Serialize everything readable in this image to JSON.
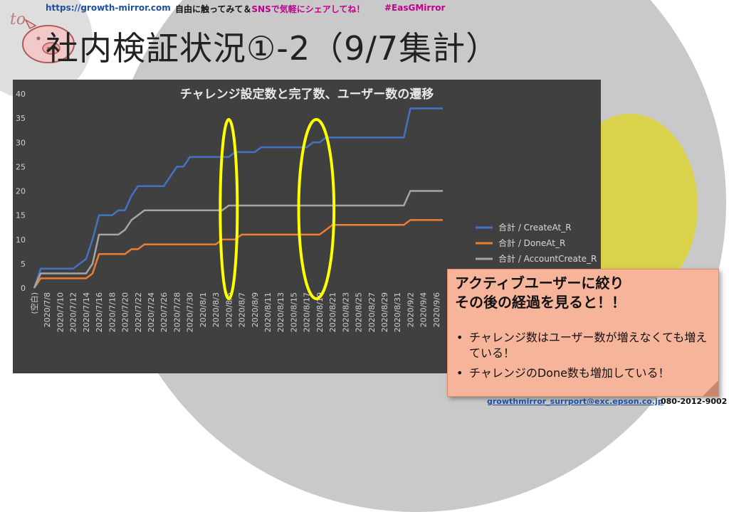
{
  "header": {
    "url": "https://growth-mirror.com",
    "message_pre": "自由に触ってみて＆",
    "message_hl": "SNSで気軽にシェアしてね！",
    "hashtag": "#EasGMirror"
  },
  "title": "社内検証状況①-2（9/7集計）",
  "callout": {
    "heading_line1": "アクティブユーザーに絞り",
    "heading_line2": "その後の経過を見ると！！",
    "bullets": [
      "チャレンジ数はユーザー数が増えなくても増えている！",
      "チャレンジのDone数も増加している！"
    ]
  },
  "footer": {
    "email": "growthmirror_surrport@exc.epson.co.jp",
    "tel": "080-2012-9002"
  },
  "colors": {
    "chart_bg": "#404040",
    "create": "#4472c4",
    "done": "#ed7d31",
    "account": "#a5a5a5",
    "highlight_ellipse": "#ffff00"
  },
  "chart_data": {
    "type": "line",
    "title": "チャレンジ設定数と完了数、ユーザー数の遷移",
    "ylim": [
      0,
      40
    ],
    "yticks": [
      0,
      5,
      10,
      15,
      20,
      25,
      30,
      35,
      40
    ],
    "x": [
      "(空白)",
      "2020/7/7",
      "2020/7/8",
      "2020/7/9",
      "2020/7/10",
      "2020/7/11",
      "2020/7/12",
      "2020/7/13",
      "2020/7/14",
      "2020/7/15",
      "2020/7/16",
      "2020/7/17",
      "2020/7/18",
      "2020/7/19",
      "2020/7/20",
      "2020/7/21",
      "2020/7/22",
      "2020/7/23",
      "2020/7/24",
      "2020/7/25",
      "2020/7/26",
      "2020/7/27",
      "2020/7/28",
      "2020/7/29",
      "2020/7/30",
      "2020/7/31",
      "2020/8/1",
      "2020/8/2",
      "2020/8/3",
      "2020/8/4",
      "2020/8/5",
      "2020/8/6",
      "2020/8/7",
      "2020/8/8",
      "2020/8/9",
      "2020/8/10",
      "2020/8/11",
      "2020/8/12",
      "2020/8/13",
      "2020/8/14",
      "2020/8/15",
      "2020/8/16",
      "2020/8/17",
      "2020/8/18",
      "2020/8/19",
      "2020/8/20",
      "2020/8/21",
      "2020/8/22",
      "2020/8/23",
      "2020/8/24",
      "2020/8/25",
      "2020/8/26",
      "2020/8/27",
      "2020/8/28",
      "2020/8/29",
      "2020/8/30",
      "2020/8/31",
      "2020/9/1",
      "2020/9/2",
      "2020/9/3",
      "2020/9/4",
      "2020/9/5",
      "2020/9/6",
      "2020/9/7"
    ],
    "xtick_labels": [
      "(空白)",
      "2020/7/8",
      "2020/7/10",
      "2020/7/12",
      "2020/7/14",
      "2020/7/16",
      "2020/7/18",
      "2020/7/20",
      "2020/7/22",
      "2020/7/24",
      "2020/7/26",
      "2020/7/28",
      "2020/7/30",
      "2020/8/1",
      "2020/8/3",
      "2020/8/5",
      "2020/8/7",
      "2020/8/9",
      "2020/8/11",
      "2020/8/13",
      "2020/8/15",
      "2020/8/17",
      "2020/8/19",
      "2020/8/21",
      "2020/8/23",
      "2020/8/25",
      "2020/8/27",
      "2020/8/29",
      "2020/8/31",
      "2020/9/2",
      "2020/9/4",
      "2020/9/6"
    ],
    "series": [
      {
        "name": "合計 / CreateAt_R",
        "color": "#4472c4",
        "values": [
          0,
          4,
          4,
          4,
          4,
          4,
          4,
          5,
          6,
          10,
          15,
          15,
          15,
          16,
          16,
          19,
          21,
          21,
          21,
          21,
          21,
          23,
          25,
          25,
          27,
          27,
          27,
          27,
          27,
          27,
          27,
          28,
          28,
          28,
          28,
          29,
          29,
          29,
          29,
          29,
          29,
          29,
          29,
          30,
          30,
          31,
          31,
          31,
          31,
          31,
          31,
          31,
          31,
          31,
          31,
          31,
          31,
          31,
          37,
          37,
          37,
          37,
          37,
          37
        ]
      },
      {
        "name": "合計 / DoneAt_R",
        "color": "#ed7d31",
        "values": [
          0,
          2,
          2,
          2,
          2,
          2,
          2,
          2,
          2,
          3,
          7,
          7,
          7,
          7,
          7,
          8,
          8,
          9,
          9,
          9,
          9,
          9,
          9,
          9,
          9,
          9,
          9,
          9,
          9,
          10,
          10,
          10,
          11,
          11,
          11,
          11,
          11,
          11,
          11,
          11,
          11,
          11,
          11,
          11,
          11,
          12,
          13,
          13,
          13,
          13,
          13,
          13,
          13,
          13,
          13,
          13,
          13,
          13,
          14,
          14,
          14,
          14,
          14,
          14
        ]
      },
      {
        "name": "合計 / AccountCreate_R",
        "color": "#a5a5a5",
        "values": [
          0,
          3,
          3,
          3,
          3,
          3,
          3,
          3,
          3,
          5,
          11,
          11,
          11,
          11,
          12,
          14,
          15,
          16,
          16,
          16,
          16,
          16,
          16,
          16,
          16,
          16,
          16,
          16,
          16,
          16,
          17,
          17,
          17,
          17,
          17,
          17,
          17,
          17,
          17,
          17,
          17,
          17,
          17,
          17,
          17,
          17,
          17,
          17,
          17,
          17,
          17,
          17,
          17,
          17,
          17,
          17,
          17,
          17,
          20,
          20,
          20,
          20,
          20,
          20
        ]
      }
    ],
    "highlights": [
      {
        "from": "2020/8/4",
        "to": "2020/8/6"
      },
      {
        "from": "2020/8/16",
        "to": "2020/8/21"
      }
    ],
    "legend_position": "right",
    "grid": false
  }
}
